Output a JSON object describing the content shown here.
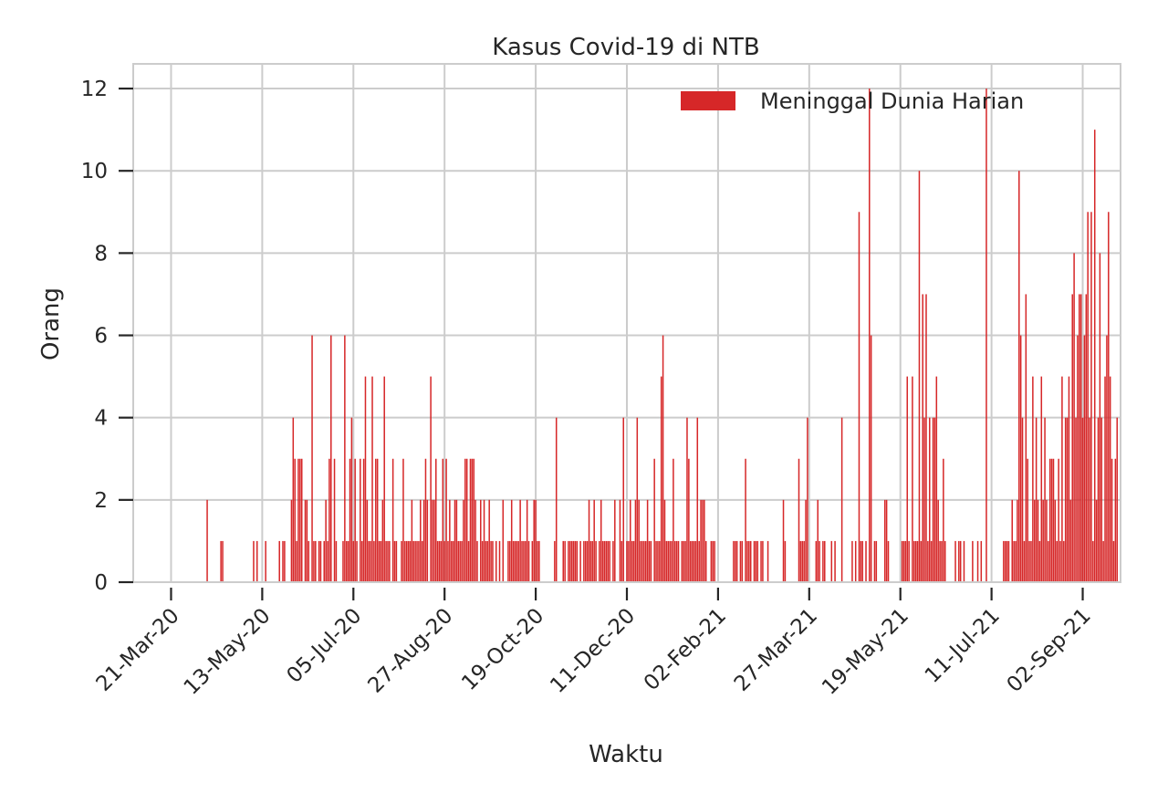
{
  "chart_data": {
    "type": "bar",
    "title": "Kasus Covid-19 di NTB",
    "xlabel": "Waktu",
    "ylabel": "Orang",
    "legend": {
      "label": "Meninggal Dunia Harian",
      "position": "upper right"
    },
    "color": "#d62728",
    "grid": true,
    "ylim": [
      0,
      12.6
    ],
    "yticks": [
      0,
      2,
      4,
      6,
      8,
      10,
      12
    ],
    "xlim": [
      "2020-02-28",
      "2021-09-24"
    ],
    "xticks": [
      "21-Mar-20",
      "13-May-20",
      "05-Jul-20",
      "27-Aug-20",
      "19-Oct-20",
      "11-Dec-20",
      "02-Feb-21",
      "27-Mar-21",
      "19-May-21",
      "11-Jul-21",
      "02-Sep-21"
    ],
    "xtick_dates": [
      "2020-03-21",
      "2020-05-13",
      "2020-07-05",
      "2020-08-27",
      "2020-10-19",
      "2020-12-11",
      "2021-02-02",
      "2021-03-27",
      "2021-05-19",
      "2021-07-11",
      "2021-09-02"
    ],
    "series": [
      {
        "name": "Meninggal Dunia Harian",
        "start_date": "2020-03-21",
        "values": [
          0,
          0,
          0,
          0,
          0,
          0,
          0,
          0,
          0,
          0,
          0,
          0,
          0,
          0,
          0,
          0,
          0,
          0,
          0,
          0,
          0,
          2,
          0,
          0,
          0,
          0,
          0,
          0,
          0,
          1,
          1,
          0,
          0,
          0,
          0,
          0,
          0,
          0,
          0,
          0,
          0,
          0,
          0,
          0,
          0,
          0,
          0,
          0,
          1,
          0,
          1,
          0,
          0,
          0,
          0,
          1,
          0,
          0,
          0,
          0,
          0,
          0,
          0,
          1,
          0,
          1,
          1,
          0,
          0,
          0,
          2,
          4,
          3,
          1,
          3,
          3,
          3,
          0,
          2,
          2,
          1,
          0,
          6,
          1,
          1,
          0,
          1,
          1,
          0,
          1,
          2,
          1,
          3,
          6,
          0,
          3,
          1,
          0,
          0,
          0,
          1,
          6,
          1,
          1,
          3,
          4,
          1,
          3,
          1,
          0,
          3,
          1,
          3,
          5,
          2,
          1,
          1,
          5,
          1,
          3,
          3,
          1,
          1,
          2,
          5,
          1,
          1,
          1,
          0,
          3,
          1,
          1,
          0,
          0,
          1,
          3,
          1,
          1,
          1,
          1,
          2,
          1,
          1,
          1,
          1,
          2,
          1,
          2,
          3,
          2,
          0,
          5,
          2,
          2,
          3,
          1,
          1,
          1,
          3,
          1,
          3,
          1,
          2,
          1,
          1,
          2,
          2,
          1,
          1,
          1,
          2,
          3,
          3,
          1,
          3,
          3,
          3,
          2,
          1,
          0,
          2,
          1,
          2,
          1,
          1,
          2,
          1,
          1,
          0,
          1,
          0,
          1,
          0,
          2,
          0,
          0,
          1,
          1,
          2,
          1,
          1,
          1,
          1,
          2,
          1,
          1,
          1,
          2,
          1,
          0,
          1,
          2,
          2,
          1,
          1,
          0,
          0,
          0,
          0,
          0,
          0,
          0,
          0,
          1,
          4,
          0,
          0,
          0,
          1,
          1,
          0,
          1,
          1,
          1,
          1,
          1,
          1,
          0,
          1,
          0,
          1,
          1,
          1,
          2,
          1,
          1,
          2,
          1,
          0,
          1,
          2,
          1,
          1,
          1,
          1,
          1,
          0,
          1,
          2,
          0,
          0,
          2,
          1,
          4,
          0,
          1,
          1,
          2,
          1,
          1,
          2,
          4,
          2,
          1,
          1,
          1,
          1,
          2,
          1,
          1,
          0,
          3,
          1,
          1,
          1,
          5,
          6,
          2,
          1,
          1,
          1,
          1,
          3,
          1,
          1,
          1,
          0,
          1,
          1,
          1,
          4,
          3,
          1,
          1,
          1,
          1,
          4,
          1,
          2,
          2,
          2,
          1,
          0,
          0,
          1,
          1,
          1,
          0,
          0,
          0,
          0,
          0,
          0,
          0,
          0,
          0,
          0,
          1,
          1,
          1,
          0,
          1,
          1,
          0,
          3,
          1,
          1,
          1,
          0,
          1,
          1,
          1,
          0,
          1,
          1,
          0,
          0,
          1,
          0,
          0,
          0,
          0,
          0,
          0,
          0,
          0,
          2,
          1,
          0,
          0,
          0,
          0,
          0,
          0,
          0,
          3,
          1,
          1,
          1,
          2,
          4,
          0,
          0,
          0,
          0,
          1,
          2,
          1,
          0,
          1,
          1,
          0,
          0,
          0,
          1,
          0,
          1,
          0,
          0,
          0,
          4,
          0,
          0,
          0,
          0,
          0,
          1,
          0,
          1,
          0,
          9,
          1,
          1,
          0,
          1,
          0,
          12,
          6,
          0,
          1,
          1,
          0,
          0,
          0,
          0,
          2,
          2,
          1,
          0,
          0,
          0,
          0,
          0,
          0,
          0,
          1,
          1,
          1,
          5,
          1,
          0,
          5,
          1,
          1,
          1,
          10,
          1,
          7,
          4,
          7,
          1,
          4,
          1,
          4,
          4,
          5,
          2,
          1,
          1,
          3,
          1,
          0,
          0,
          0,
          0,
          0,
          1,
          0,
          1,
          1,
          0,
          1,
          0,
          0,
          0,
          0,
          1,
          0,
          0,
          1,
          0,
          1,
          0,
          0,
          12,
          0,
          0,
          0,
          0,
          0,
          0,
          0,
          0,
          0,
          1,
          1,
          1,
          1,
          0,
          2,
          1,
          1,
          2,
          10,
          6,
          4,
          1,
          7,
          3,
          1,
          1,
          5,
          2,
          4,
          2,
          1,
          5,
          2,
          4,
          2,
          1,
          3,
          3,
          3,
          2,
          1,
          3,
          1,
          5,
          1,
          4,
          4,
          5,
          2,
          7,
          8,
          4,
          6,
          7,
          7,
          4,
          6,
          7,
          9,
          4,
          9,
          1,
          11,
          2,
          4,
          8,
          4,
          1,
          5,
          6,
          9,
          5,
          3,
          1,
          3,
          4
        ]
      }
    ]
  }
}
